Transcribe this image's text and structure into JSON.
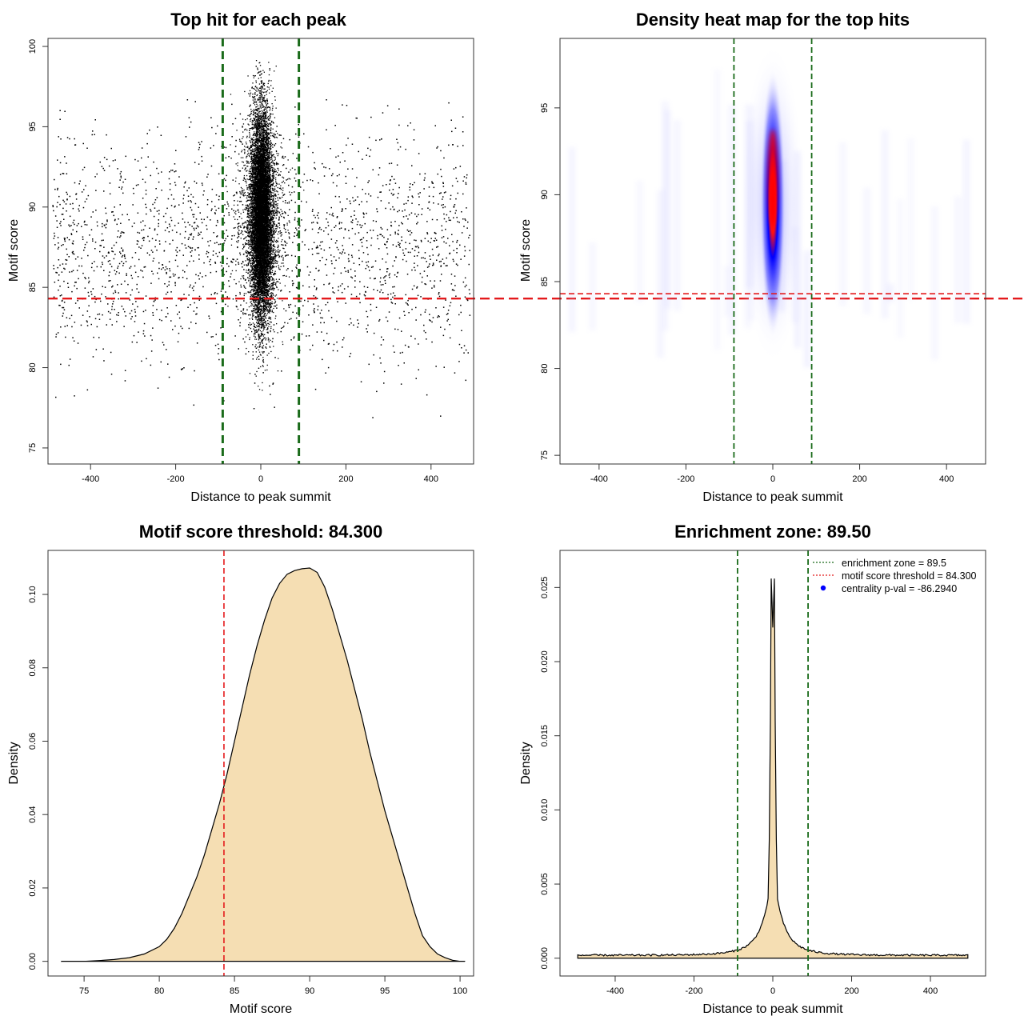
{
  "chart_data": [
    {
      "type": "scatter",
      "title": "Top hit for each peak",
      "xlabel": "Distance to peak summit",
      "ylabel": "Motif score",
      "xlim": [
        -500,
        500
      ],
      "ylim": [
        74,
        100.5
      ],
      "xticks": [
        -400,
        -200,
        0,
        200,
        400
      ],
      "yticks": [
        75,
        80,
        85,
        90,
        95,
        100
      ],
      "vlines": [
        -89.5,
        89.5
      ],
      "hline": 84.3,
      "vline_color": "#1a6b1a",
      "hline_color": "#e41a1c",
      "point_color": "#000000",
      "central_cluster": {
        "x_center": 0,
        "x_sd": 12,
        "y_center": 89.5,
        "y_sd": 3.2,
        "n": 12000
      },
      "background": {
        "x_range": [
          -490,
          490
        ],
        "y_center": 87.5,
        "y_sd": 3.6,
        "n": 2200
      }
    },
    {
      "type": "heatmap",
      "title": "Density heat map for the top hits",
      "xlabel": "Distance to peak summit",
      "ylabel": "Motif score",
      "xlim": [
        -490,
        490
      ],
      "ylim": [
        74.5,
        99
      ],
      "xticks": [
        -400,
        -200,
        0,
        200,
        400
      ],
      "yticks": [
        75,
        80,
        85,
        90,
        95
      ],
      "vlines": [
        -89.5,
        89.5
      ],
      "hline": 84.3,
      "vline_color": "#1a6b1a",
      "hline_color": "#e41a1c",
      "color_ramp": [
        "#ffffff",
        "#0000ff",
        "#ff0000"
      ],
      "hotspot": {
        "x": 0,
        "y_range": [
          82,
          97
        ],
        "peak_y": 91
      }
    },
    {
      "type": "area",
      "title": "Motif score threshold: 84.300",
      "xlabel": "Motif score",
      "ylabel": "Density",
      "xlim": [
        72.6,
        100.9
      ],
      "ylim": [
        -0.004,
        0.112
      ],
      "xticks": [
        75,
        80,
        85,
        90,
        95,
        100
      ],
      "yticks": [
        0.0,
        0.02,
        0.04,
        0.06,
        0.08,
        0.1
      ],
      "ytick_labels": [
        "0.00",
        "0.02",
        "0.04",
        "0.06",
        "0.08",
        "0.10"
      ],
      "vline": 84.3,
      "vline_color": "#e41a1c",
      "fill": "#f5deb3",
      "x": [
        73.5,
        75,
        76,
        77,
        78,
        79,
        80,
        80.5,
        81,
        81.5,
        82,
        82.5,
        83,
        83.5,
        84,
        84.5,
        85,
        85.5,
        86,
        86.5,
        87,
        87.5,
        88,
        88.5,
        89,
        89.5,
        90,
        90.5,
        91,
        91.5,
        92,
        92.5,
        93,
        93.5,
        94,
        94.5,
        95,
        95.5,
        96,
        96.5,
        97,
        97.5,
        98,
        98.5,
        99,
        99.5,
        100,
        100.3
      ],
      "y": [
        0.0,
        0.0,
        0.0002,
        0.0005,
        0.001,
        0.002,
        0.004,
        0.006,
        0.009,
        0.013,
        0.018,
        0.023,
        0.029,
        0.036,
        0.043,
        0.051,
        0.06,
        0.069,
        0.078,
        0.086,
        0.093,
        0.099,
        0.103,
        0.1055,
        0.1065,
        0.107,
        0.1072,
        0.106,
        0.102,
        0.096,
        0.089,
        0.082,
        0.074,
        0.066,
        0.057,
        0.049,
        0.041,
        0.034,
        0.027,
        0.02,
        0.013,
        0.007,
        0.004,
        0.002,
        0.001,
        0.0003,
        0.0,
        0.0
      ]
    },
    {
      "type": "area",
      "title": "Enrichment zone: 89.50",
      "xlabel": "Distance to peak summit",
      "ylabel": "Density",
      "xlim": [
        -540,
        540
      ],
      "ylim": [
        -0.0012,
        0.0275
      ],
      "xticks": [
        -400,
        -200,
        0,
        200,
        400
      ],
      "yticks": [
        0.0,
        0.005,
        0.01,
        0.015,
        0.02,
        0.025
      ],
      "ytick_labels": [
        "0.000",
        "0.005",
        "0.010",
        "0.015",
        "0.020",
        "0.025"
      ],
      "vlines": [
        -89.5,
        89.5
      ],
      "vline_color": "#1a6b1a",
      "fill": "#f5deb3",
      "baseline_density": 0.0002,
      "peak": {
        "x_left": -4,
        "x_right": 4,
        "y_max": 0.0256,
        "dip_x": 0,
        "dip_y": 0.0223
      },
      "legend": {
        "position": "top-right",
        "items": [
          {
            "label": "enrichment zone = 89.5",
            "color": "#1a6b1a",
            "style": "dotted-line"
          },
          {
            "label": "motif score threshold = 84.300",
            "color": "#e41a1c",
            "style": "dotted-line"
          },
          {
            "label": "centrality p-val = -86.2940",
            "color": "#0000ff",
            "style": "dot"
          }
        ]
      }
    }
  ]
}
